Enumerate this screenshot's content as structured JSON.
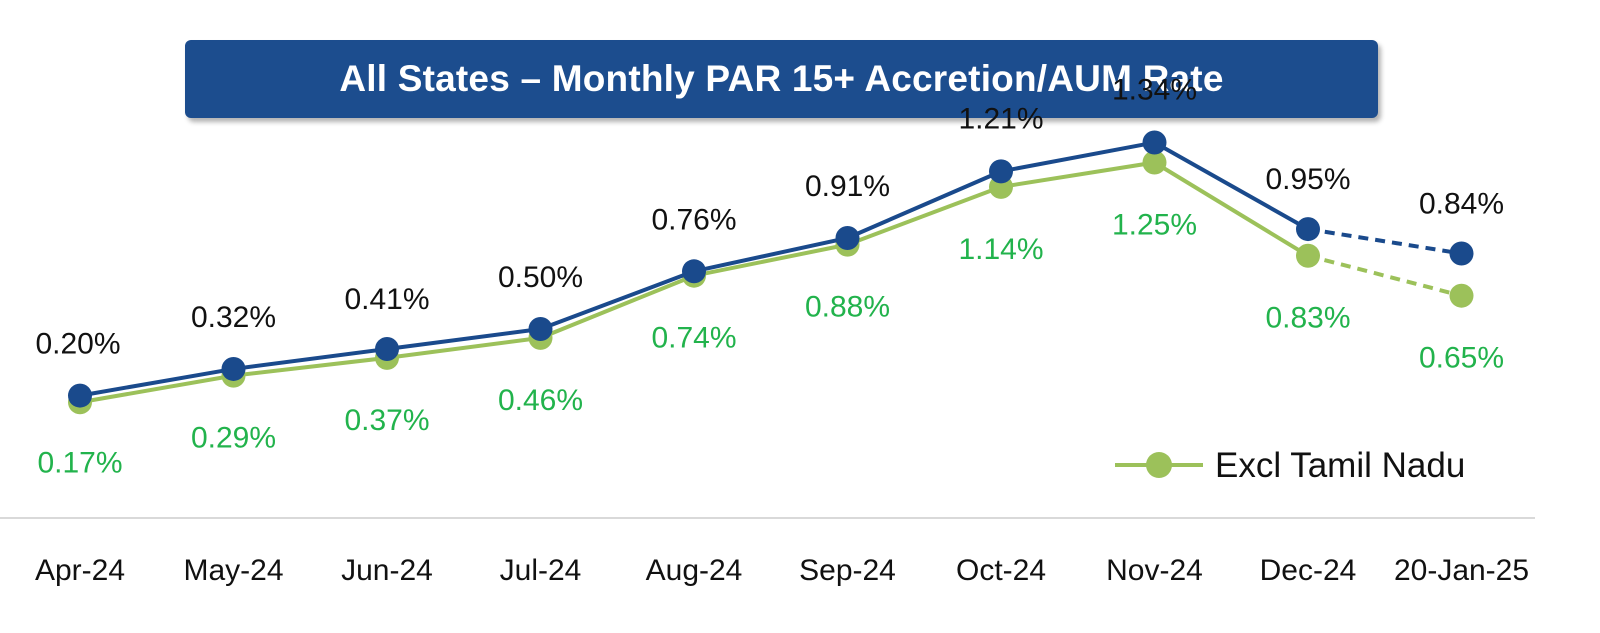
{
  "colors": {
    "banner": "#1c4d8e",
    "all_states": "#1a4a8c",
    "excl_tn_line": "#9cc15a",
    "excl_tn_label": "#22b34c",
    "all_states_label": "#111111",
    "axis": "#d9d9d9"
  },
  "chart_data": {
    "type": "line",
    "title": "All States – Monthly PAR 15+ Accretion/AUM Rate",
    "categories": [
      "Apr-24",
      "May-24",
      "Jun-24",
      "Jul-24",
      "Aug-24",
      "Sep-24",
      "Oct-24",
      "Nov-24",
      "Dec-24",
      "20-Jan-25"
    ],
    "ylim": [
      0,
      1.6
    ],
    "grid": false,
    "series": [
      {
        "name": "All States",
        "values": [
          0.2,
          0.32,
          0.41,
          0.5,
          0.76,
          0.91,
          1.21,
          1.34,
          0.95,
          0.84
        ],
        "labels": [
          "0.20%",
          "0.32%",
          "0.41%",
          "0.50%",
          "0.76%",
          "0.91%",
          "1.21%",
          "1.34%",
          "0.95%",
          "0.84%"
        ],
        "dashed_last_segment": true,
        "in_legend": false
      },
      {
        "name": "Excl Tamil Nadu",
        "values": [
          0.17,
          0.29,
          0.37,
          0.46,
          0.74,
          0.88,
          1.14,
          1.25,
          0.83,
          0.65
        ],
        "labels": [
          "0.17%",
          "0.29%",
          "0.37%",
          "0.46%",
          "0.74%",
          "0.88%",
          "1.14%",
          "1.25%",
          "0.83%",
          "0.65%"
        ],
        "dashed_last_segment": true,
        "in_legend": true
      }
    ],
    "legend": {
      "position": "bottom-right",
      "entries": [
        "Excl Tamil Nadu"
      ]
    }
  }
}
